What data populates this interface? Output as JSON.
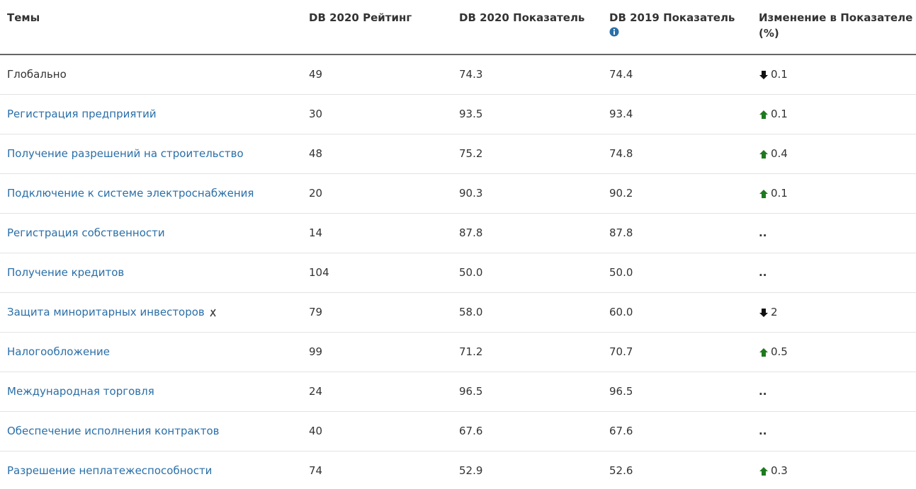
{
  "table": {
    "columns": [
      "Темы",
      "DB 2020 Рейтинг",
      "DB 2020 Показатель",
      "DB 2019 Показатель",
      "Изменение в Показателе (%)"
    ],
    "rows": [
      {
        "topic": "Глобально",
        "link": false,
        "rank": "49",
        "score2020": "74.3",
        "score2019": "74.4",
        "change": "0.1",
        "trend": "down"
      },
      {
        "topic": "Регистрация предприятий",
        "link": true,
        "rank": "30",
        "score2020": "93.5",
        "score2019": "93.4",
        "change": "0.1",
        "trend": "up"
      },
      {
        "topic": "Получение разрешений на строительство",
        "link": true,
        "rank": "48",
        "score2020": "75.2",
        "score2019": "74.8",
        "change": "0.4",
        "trend": "up"
      },
      {
        "topic": "Подключение к системе электроснабжения",
        "link": true,
        "rank": "20",
        "score2020": "90.3",
        "score2019": "90.2",
        "change": "0.1",
        "trend": "up"
      },
      {
        "topic": "Регистрация собственности",
        "link": true,
        "rank": "14",
        "score2020": "87.8",
        "score2019": "87.8",
        "change": ".."
      },
      {
        "topic": "Получение кредитов",
        "link": true,
        "rank": "104",
        "score2020": "50.0",
        "score2019": "50.0",
        "change": ".."
      },
      {
        "topic": "Защита миноритарных инвесторов",
        "link": true,
        "icon": "cross",
        "rank": "79",
        "score2020": "58.0",
        "score2019": "60.0",
        "change": "2",
        "trend": "down"
      },
      {
        "topic": "Налогообложение",
        "link": true,
        "rank": "99",
        "score2020": "71.2",
        "score2019": "70.7",
        "change": "0.5",
        "trend": "up"
      },
      {
        "topic": "Международная торговля",
        "link": true,
        "rank": "24",
        "score2020": "96.5",
        "score2019": "96.5",
        "change": ".."
      },
      {
        "topic": "Обеспечение исполнения контрактов",
        "link": true,
        "rank": "40",
        "score2020": "67.6",
        "score2019": "67.6",
        "change": ".."
      },
      {
        "topic": "Разрешение неплатежеспособности",
        "link": true,
        "rank": "74",
        "score2020": "52.9",
        "score2019": "52.6",
        "change": "0.3",
        "trend": "up"
      }
    ]
  }
}
